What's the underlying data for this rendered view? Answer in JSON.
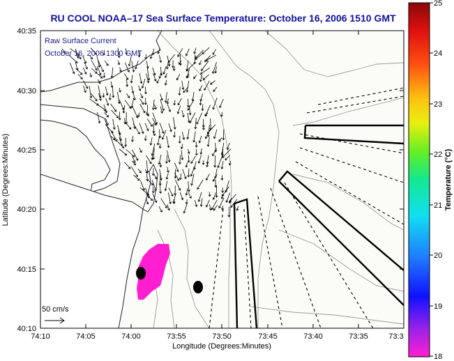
{
  "title": "RU COOL  NOAA–17  Sea Surface Temperature:  October 16, 2006 1510 GMT",
  "map": {
    "xlabel": "Longitude (Degrees:Minutes)",
    "ylabel": "Latitude (Degrees:Minutes)",
    "x_ticks": [
      "74:10",
      "74:05",
      "74:00",
      "73:55",
      "73:50",
      "73:45",
      "73:40",
      "73:35",
      "73:3"
    ],
    "y_ticks": [
      "40:35",
      "40:30",
      "40:25",
      "40:20",
      "40:15",
      "40:10"
    ],
    "annotation_line1": "Raw Surface Current",
    "annotation_line2": "October 16, 2006 1300 GMT",
    "scale_label": "50 cm/s"
  },
  "colorbar": {
    "label": "Temperature (°C)",
    "ticks": [
      "25",
      "24",
      "23",
      "22",
      "21",
      "20",
      "19",
      "18"
    ],
    "min": 18,
    "max": 25
  },
  "colors": {
    "title": "#1010a0",
    "annotation": "#1a1a8c",
    "sst_patch": "#ff1fd0",
    "land": "#ffffff",
    "ocean": "#fafaf6"
  }
}
